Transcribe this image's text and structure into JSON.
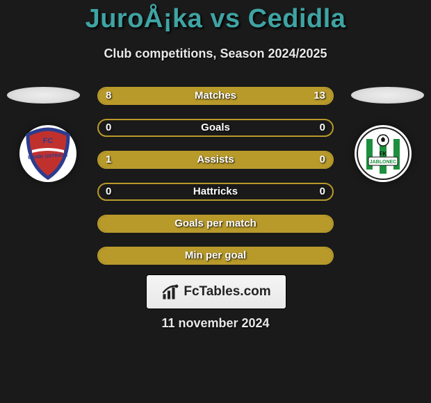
{
  "title": {
    "text": "JuroÅ¡ka vs Cedidla",
    "color": "#3fa3a3"
  },
  "subtitle": "Club competitions, Season 2024/2025",
  "accent": "#b89a2b",
  "bar_bg_neutral": "#1a1a1a",
  "bars": [
    {
      "label": "Matches",
      "left": "8",
      "right": "13",
      "left_pct": 38,
      "right_pct": 62,
      "show_vals": true
    },
    {
      "label": "Goals",
      "left": "0",
      "right": "0",
      "left_pct": 0,
      "right_pct": 0,
      "show_vals": true
    },
    {
      "label": "Assists",
      "left": "1",
      "right": "0",
      "left_pct": 100,
      "right_pct": 0,
      "show_vals": true
    },
    {
      "label": "Hattricks",
      "left": "0",
      "right": "0",
      "left_pct": 0,
      "right_pct": 0,
      "show_vals": true
    },
    {
      "label": "Goals per match",
      "left": "",
      "right": "",
      "left_pct": 100,
      "right_pct": 0,
      "show_vals": false
    },
    {
      "label": "Min per goal",
      "left": "",
      "right": "",
      "left_pct": 100,
      "right_pct": 0,
      "show_vals": false
    }
  ],
  "badges": {
    "left": {
      "name": "banik-ostrava-badge",
      "bg": "#ffffff",
      "primary": "#c0312e",
      "secondary": "#2b3c8f",
      "text": "FC"
    },
    "right": {
      "name": "fk-jablonec-badge",
      "bg": "#ffffff",
      "primary": "#1e8f3e",
      "secondary": "#111111",
      "text": "FK"
    }
  },
  "brand": {
    "label": "FcTables.com"
  },
  "date": "11 november 2024"
}
